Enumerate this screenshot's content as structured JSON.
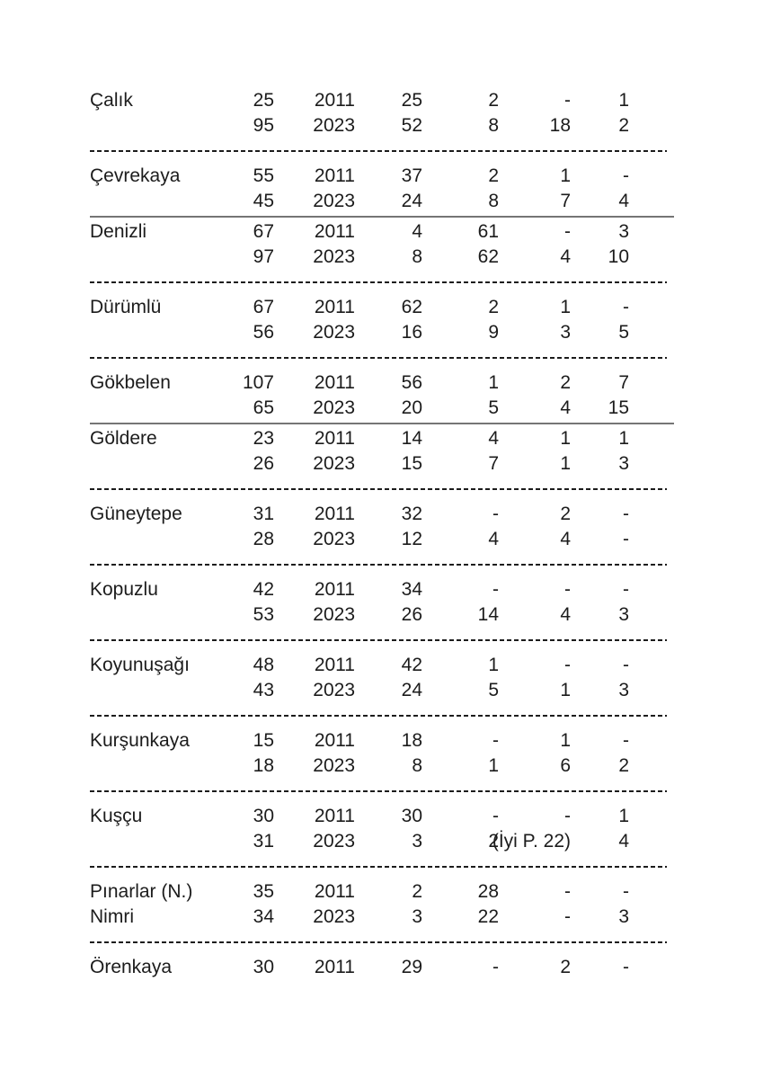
{
  "document": {
    "background_color": "#ffffff",
    "text_color": "#1c1c1c",
    "dashed_separator_color": "#1c1c1c",
    "solid_separator_color": "#757575"
  },
  "table": {
    "rows": [
      {
        "name": "Çalık",
        "name2": "",
        "lines": [
          [
            "25",
            "2011",
            "25",
            "2",
            "-",
            "1"
          ],
          [
            "95",
            "2023",
            "52",
            "8",
            "18",
            "2"
          ]
        ],
        "separator_after": "dashed"
      },
      {
        "name": "Çevrekaya",
        "name2": "",
        "lines": [
          [
            "55",
            "2011",
            "37",
            "2",
            "1",
            "-"
          ],
          [
            "45",
            "2023",
            "24",
            "8",
            "7",
            "4"
          ]
        ],
        "separator_after": "solid"
      },
      {
        "name": "Denizli",
        "name2": "",
        "lines": [
          [
            "67",
            "2011",
            "4",
            "61",
            "-",
            "3"
          ],
          [
            "97",
            "2023",
            "8",
            "62",
            "4",
            "10"
          ]
        ],
        "separator_after": "dashed"
      },
      {
        "name": "Dürümlü",
        "name2": "",
        "lines": [
          [
            "67",
            "2011",
            "62",
            "2",
            "1",
            "-"
          ],
          [
            "56",
            "2023",
            "16",
            "9",
            "3",
            "5"
          ]
        ],
        "separator_after": "dashed"
      },
      {
        "name": "Gökbelen",
        "name2": "",
        "lines": [
          [
            "107",
            "2011",
            "56",
            "1",
            "2",
            "7"
          ],
          [
            "65",
            "2023",
            "20",
            "5",
            "4",
            "15"
          ]
        ],
        "separator_after": "solid"
      },
      {
        "name": "Göldere",
        "name2": "",
        "lines": [
          [
            "23",
            "2011",
            "14",
            "4",
            "1",
            "1"
          ],
          [
            "26",
            "2023",
            "15",
            "7",
            "1",
            "3"
          ]
        ],
        "separator_after": "dashed"
      },
      {
        "name": "Güneytepe",
        "name2": "",
        "lines": [
          [
            "31",
            "2011",
            "32",
            "-",
            "2",
            "-"
          ],
          [
            "28",
            "2023",
            "12",
            "4",
            "4",
            "-"
          ]
        ],
        "separator_after": "dashed"
      },
      {
        "name": "Kopuzlu",
        "name2": "",
        "lines": [
          [
            "42",
            "2011",
            "34",
            "-",
            "-",
            "-"
          ],
          [
            "53",
            "2023",
            "26",
            "14",
            "4",
            "3"
          ]
        ],
        "separator_after": "dashed"
      },
      {
        "name": "Koyunuşağı",
        "name2": "",
        "lines": [
          [
            "48",
            "2011",
            "42",
            "1",
            "-",
            "-"
          ],
          [
            "43",
            "2023",
            "24",
            "5",
            "1",
            "3"
          ]
        ],
        "separator_after": "dashed"
      },
      {
        "name": "Kurşunkaya",
        "name2": "",
        "lines": [
          [
            "15",
            "2011",
            "18",
            "-",
            "1",
            "-"
          ],
          [
            "18",
            "2023",
            "8",
            "1",
            "6",
            "2"
          ]
        ],
        "separator_after": "dashed"
      },
      {
        "name": "Kuşçu",
        "name2": "",
        "lines": [
          [
            "30",
            "2011",
            "30",
            "-",
            "-",
            "1"
          ],
          [
            "31",
            "2023",
            "3",
            "2",
            "(İyi P. 22)",
            "4"
          ]
        ],
        "separator_after": "dashed"
      },
      {
        "name": "Pınarlar (N.)",
        "name2": "Nimri",
        "lines": [
          [
            "35",
            "2011",
            "2",
            "28",
            "-",
            "-"
          ],
          [
            "34",
            "2023",
            "3",
            "22",
            "-",
            "3"
          ]
        ],
        "separator_after": "dashed"
      },
      {
        "name": "Örenkaya",
        "name2": "",
        "lines": [
          [
            "30",
            "2011",
            "29",
            "-",
            "2",
            "-"
          ]
        ],
        "separator_after": "none"
      }
    ]
  }
}
